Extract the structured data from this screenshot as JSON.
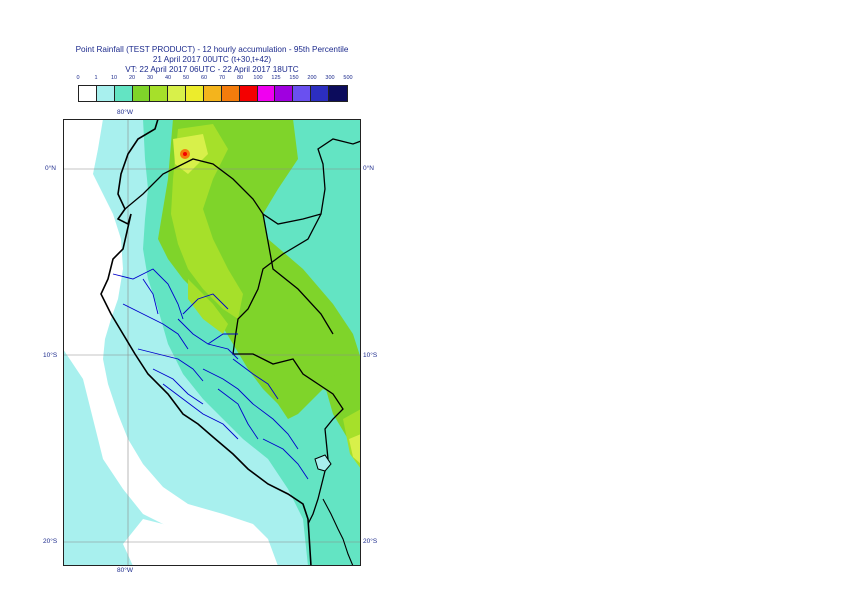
{
  "header": {
    "line1": "Point Rainfall (TEST PRODUCT) - 12 hourly accumulation - 95th Percentile",
    "line2": "21 April 2017 00UTC (t+30,t+42)",
    "line3": "VT: 22 April 2017 06UTC - 22 April 2017 18UTC"
  },
  "legend": {
    "ticks": [
      "0",
      "1",
      "10",
      "20",
      "30",
      "40",
      "50",
      "60",
      "70",
      "80",
      "100",
      "125",
      "150",
      "200",
      "300",
      "500"
    ],
    "colors": [
      "#ffffff",
      "#a8f0ee",
      "#63e4c3",
      "#7fd42a",
      "#a6e02a",
      "#d8f04a",
      "#ecec2c",
      "#f4b41c",
      "#f47c0c",
      "#f40000",
      "#f000f0",
      "#a000e0",
      "#6a50f0",
      "#2c2ec0",
      "#0c0c5c"
    ]
  },
  "map": {
    "lon_label": "80°W",
    "lat_labels": {
      "north": "0°N",
      "mid": "10°S",
      "south": "20°S"
    },
    "fill_colors": {
      "ocean_light": "#a8f0ee",
      "teal": "#63e4c3",
      "green": "#7fd42a",
      "lightgreen": "#a6e02a",
      "yellow": "#d8f04a",
      "orange": "#f47c0c"
    },
    "border_color": "#000000",
    "province_color": "#0000cc"
  }
}
